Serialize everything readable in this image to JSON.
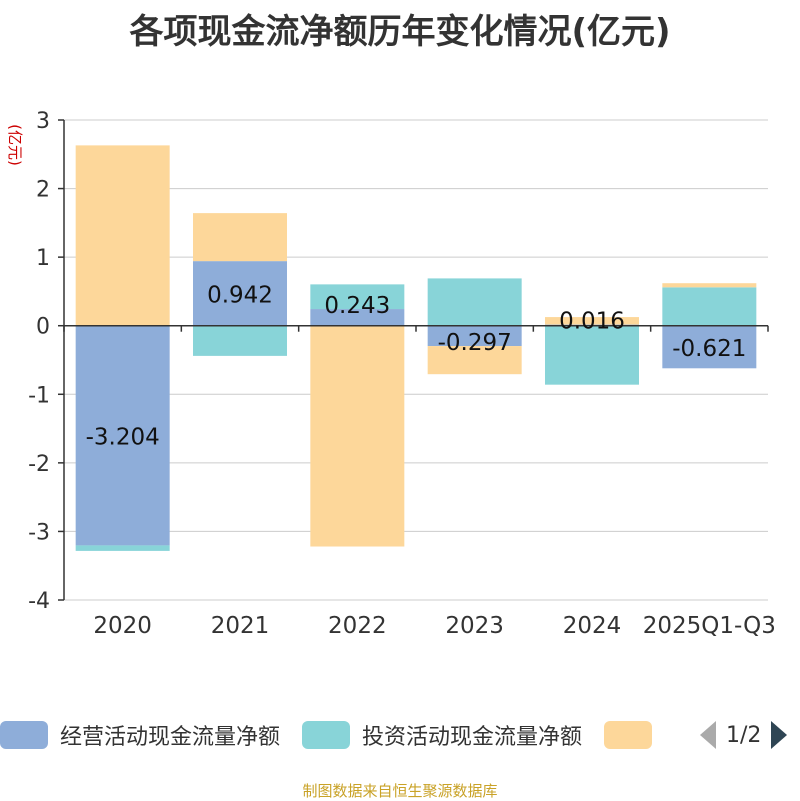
{
  "chart_data": {
    "type": "bar",
    "title": "各项现金流净额历年变化情况(亿元)",
    "ylabel": "(亿元)",
    "ylim": [
      -4,
      3
    ],
    "yticks": [
      -4,
      -3,
      -2,
      -1,
      0,
      1,
      2,
      3
    ],
    "categories": [
      "2020",
      "2021",
      "2022",
      "2023",
      "2024",
      "2025Q1-Q3"
    ],
    "series": [
      {
        "name": "经营活动现金流量净额",
        "color": "#8eadd9",
        "values": [
          -3.204,
          0.942,
          0.243,
          -0.297,
          0.016,
          -0.621
        ],
        "labels": [
          "-3.204",
          "0.942",
          "0.243",
          "-0.297",
          "0.016",
          "-0.621"
        ]
      },
      {
        "name": "投资活动现金流量净额",
        "color": "#88d4d8",
        "values": [
          -0.08,
          -0.44,
          0.36,
          0.69,
          -0.86,
          0.56
        ]
      },
      {
        "name": "",
        "color": "#fdd79a",
        "values": [
          2.63,
          0.7,
          -3.22,
          -0.41,
          0.11,
          0.06
        ]
      }
    ],
    "grid": true,
    "legend_position": "bottom"
  },
  "legend": {
    "items": [
      {
        "label": "经营活动现金流量净额",
        "color": "#8eadd9"
      },
      {
        "label": "投资活动现金流量净额",
        "color": "#88d4d8"
      },
      {
        "label": "",
        "color": "#fdd79a"
      }
    ],
    "page_text": "1/2"
  },
  "source": "制图数据来自恒生聚源数据库"
}
